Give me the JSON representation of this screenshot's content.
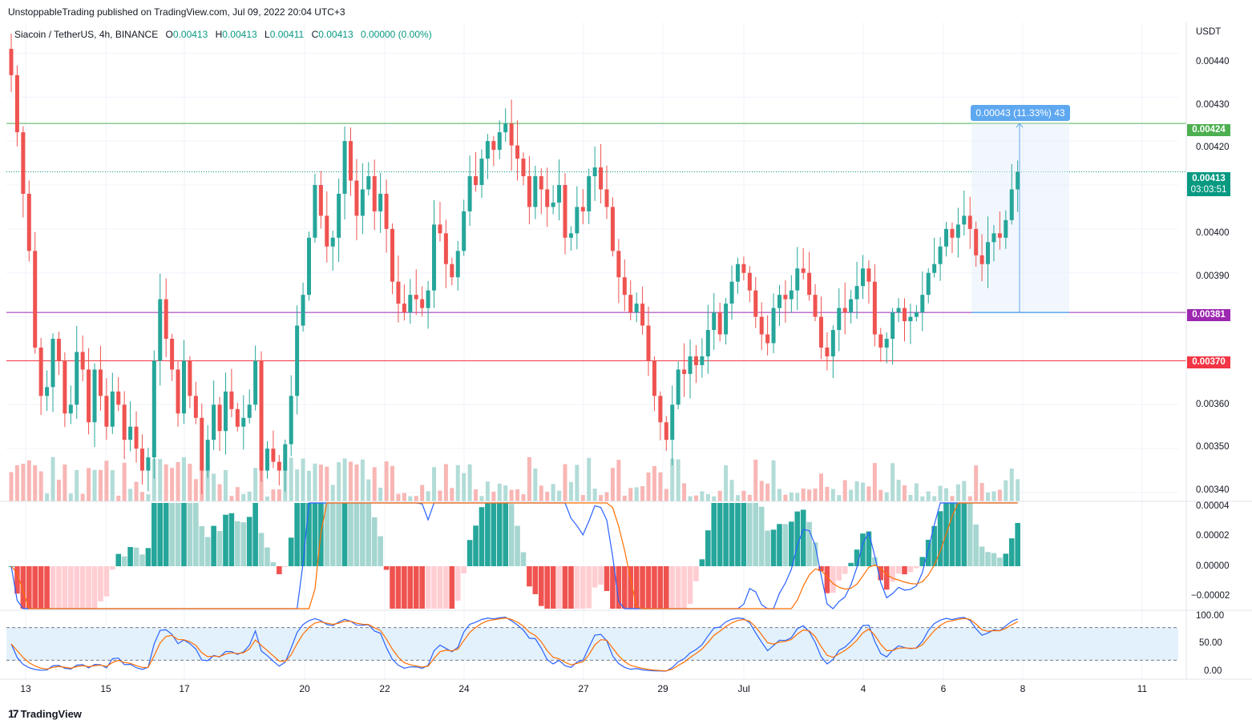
{
  "header": {
    "publisher": "UnstoppableTrading published on TradingView.com, Jul 09, 2022 20:04 UTC+3"
  },
  "legend": {
    "symbol": "Siacoin / TetherUS, 4h, BINANCE",
    "o_label": "O",
    "o": "0.00413",
    "h_label": "H",
    "h": "0.00413",
    "l_label": "L",
    "l": "0.00411",
    "c_label": "C",
    "c": "0.00413",
    "change": "0.00000 (0.00%)"
  },
  "currency": "USDT",
  "price_axis": [
    "0.00440",
    "0.00430",
    "0.00420",
    "0.00400",
    "0.00390",
    "0.00360",
    "0.00350",
    "0.00340"
  ],
  "price_tags": {
    "resistance": "0.00424",
    "current": "0.00413",
    "countdown": "03:03:51",
    "mid_support": "0.00381",
    "support": "0.00370"
  },
  "measure_label": "0.00043 (11.33%) 43",
  "macd_axis": [
    "0.00004",
    "0.00002",
    "0.00000",
    "−0.00002"
  ],
  "stoch_axis": [
    "100.00",
    "50.00",
    "0.00"
  ],
  "time_axis": [
    "13",
    "15",
    "17",
    "20",
    "22",
    "24",
    "27",
    "29",
    "Jul",
    "4",
    "6",
    "8",
    "11"
  ],
  "brand": "TradingView",
  "colors": {
    "up": "#26a69a",
    "down": "#ef5350",
    "up_light": "#a5d6d0",
    "down_light": "#f7a9a7",
    "resistance": "#4caf50",
    "mid": "#9c27b0",
    "support": "#f23645",
    "macd": "#2962ff",
    "signal": "#ff6d00",
    "measure": "#5ea8f0"
  },
  "chart_data": {
    "type": "candlestick",
    "title": "Siacoin / TetherUS, 4h, BINANCE",
    "ylabel": "USDT",
    "ylim": [
      0.00338,
      0.00447
    ],
    "horizontal_levels": [
      0.00424,
      0.00381,
      0.0037
    ],
    "last_close": 0.00413,
    "measurement": {
      "from": 0.00381,
      "to": 0.00424,
      "change": 0.00043,
      "percent": 11.33,
      "bars": 43
    },
    "closes": [
      0.00435,
      0.00422,
      0.00408,
      0.00395,
      0.00373,
      0.00362,
      0.00364,
      0.00375,
      0.0037,
      0.00358,
      0.0036,
      0.00372,
      0.00368,
      0.00356,
      0.00368,
      0.00362,
      0.00355,
      0.00363,
      0.0036,
      0.00352,
      0.00355,
      0.0035,
      0.00345,
      0.00348,
      0.0037,
      0.00384,
      0.00375,
      0.00368,
      0.00358,
      0.0037,
      0.00362,
      0.00357,
      0.00345,
      0.00352,
      0.0036,
      0.00354,
      0.00363,
      0.00359,
      0.00355,
      0.00357,
      0.0036,
      0.0037,
      0.00345,
      0.0035,
      0.00347,
      0.00345,
      0.00351,
      0.00362,
      0.00378,
      0.00385,
      0.00398,
      0.0041,
      0.00403,
      0.00396,
      0.00398,
      0.00408,
      0.0042,
      0.00411,
      0.00403,
      0.00409,
      0.00412,
      0.00404,
      0.00408,
      0.004,
      0.00388,
      0.00383,
      0.00381,
      0.00385,
      0.00384,
      0.00382,
      0.00386,
      0.00401,
      0.00399,
      0.00392,
      0.00389,
      0.00395,
      0.00404,
      0.00412,
      0.0041,
      0.00416,
      0.0042,
      0.00418,
      0.00422,
      0.00424,
      0.00419,
      0.00416,
      0.00412,
      0.00405,
      0.00412,
      0.00409,
      0.00405,
      0.00406,
      0.0041,
      0.00398,
      0.00399,
      0.00405,
      0.00404,
      0.00412,
      0.00414,
      0.00409,
      0.00405,
      0.00395,
      0.00389,
      0.00385,
      0.00381,
      0.00383,
      0.00378,
      0.0037,
      0.00362,
      0.00356,
      0.00352,
      0.0036,
      0.00368,
      0.00367,
      0.00371,
      0.00369,
      0.00371,
      0.00377,
      0.00381,
      0.00376,
      0.00383,
      0.00388,
      0.00392,
      0.0039,
      0.00386,
      0.0038,
      0.00376,
      0.00374,
      0.00382,
      0.00385,
      0.00384,
      0.00386,
      0.00391,
      0.0039,
      0.00385,
      0.0038,
      0.00373,
      0.00371,
      0.00377,
      0.00382,
      0.00381,
      0.00384,
      0.00387,
      0.00391,
      0.00388,
      0.00376,
      0.00373,
      0.00375,
      0.00381,
      0.00382,
      0.00379,
      0.0038,
      0.00381,
      0.00385,
      0.0039,
      0.00392,
      0.00396,
      0.004,
      0.00398,
      0.00401,
      0.00403,
      0.004,
      0.00394,
      0.00392,
      0.00397,
      0.00399,
      0.00398,
      0.00402,
      0.00409,
      0.00413
    ]
  }
}
